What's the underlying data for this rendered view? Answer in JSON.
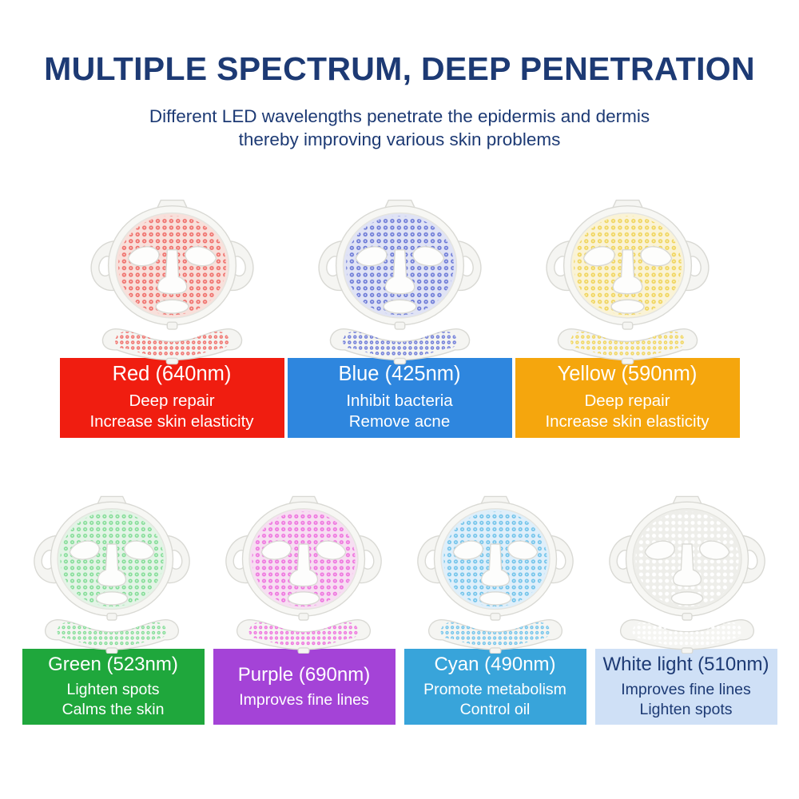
{
  "header": {
    "title": "MULTIPLE SPECTRUM, DEEP PENETRATION",
    "subtitle_line1": "Different LED wavelengths penetrate the epidermis and dermis",
    "subtitle_line2": "thereby improving various skin problems",
    "text_color": "#1d3a74"
  },
  "mask_body_color": "#f5f5f2",
  "mask_outline_color": "#d9d9d4",
  "rows": [
    {
      "items": [
        {
          "id": "red",
          "label": "Red (640nm)",
          "lines": [
            "Deep repair",
            "Increase skin elasticity"
          ],
          "box_bg": "#f01d10",
          "box_text": "#ffffff",
          "mask": {
            "led": "#ef6e6a",
            "led_core": "#fad3cd",
            "tint": "#f8e0db"
          }
        },
        {
          "id": "blue",
          "label": "Blue (425nm)",
          "lines": [
            "Inhibit bacteria",
            "Remove acne"
          ],
          "box_bg": "#2e86de",
          "box_text": "#ffffff",
          "mask": {
            "led": "#6b79d6",
            "led_core": "#dcdff6",
            "tint": "#e0e3f5"
          }
        },
        {
          "id": "yellow",
          "label": "Yellow (590nm)",
          "lines": [
            "Deep repair",
            "Increase skin elasticity"
          ],
          "box_bg": "#f5a60d",
          "box_text": "#ffffff",
          "mask": {
            "led": "#f0d45c",
            "led_core": "#fbf3c2",
            "tint": "#faf3d6"
          }
        }
      ]
    },
    {
      "items": [
        {
          "id": "green",
          "label": "Green (523nm)",
          "lines": [
            "Lighten spots",
            "Calms the skin"
          ],
          "box_bg": "#1fa73c",
          "box_text": "#ffffff",
          "mask": {
            "led": "#82dc96",
            "led_core": "#e1f7e5",
            "tint": "#e3f4e6"
          }
        },
        {
          "id": "purple",
          "label": "Purple (690nm)",
          "lines": [
            "Improves fine lines"
          ],
          "box_bg": "#a443d7",
          "box_text": "#ffffff",
          "mask": {
            "led": "#ee74de",
            "led_core": "#f8c3ef",
            "tint": "#f7def2"
          }
        },
        {
          "id": "cyan",
          "label": "Cyan (490nm)",
          "lines": [
            "Promote metabolism",
            "Control oil"
          ],
          "box_bg": "#38a4da",
          "box_text": "#ffffff",
          "mask": {
            "led": "#6fc2ea",
            "led_core": "#d8effa",
            "tint": "#dfeffa"
          }
        },
        {
          "id": "white",
          "label": "White light (510nm)",
          "lines": [
            "Improves fine lines",
            "Lighten spots"
          ],
          "box_bg": "#cfe0f6",
          "box_text": "#1d3a74",
          "mask": {
            "led": "#ffffff",
            "led_core": "#ffffff",
            "tint": "#eeeeea"
          }
        }
      ]
    }
  ]
}
